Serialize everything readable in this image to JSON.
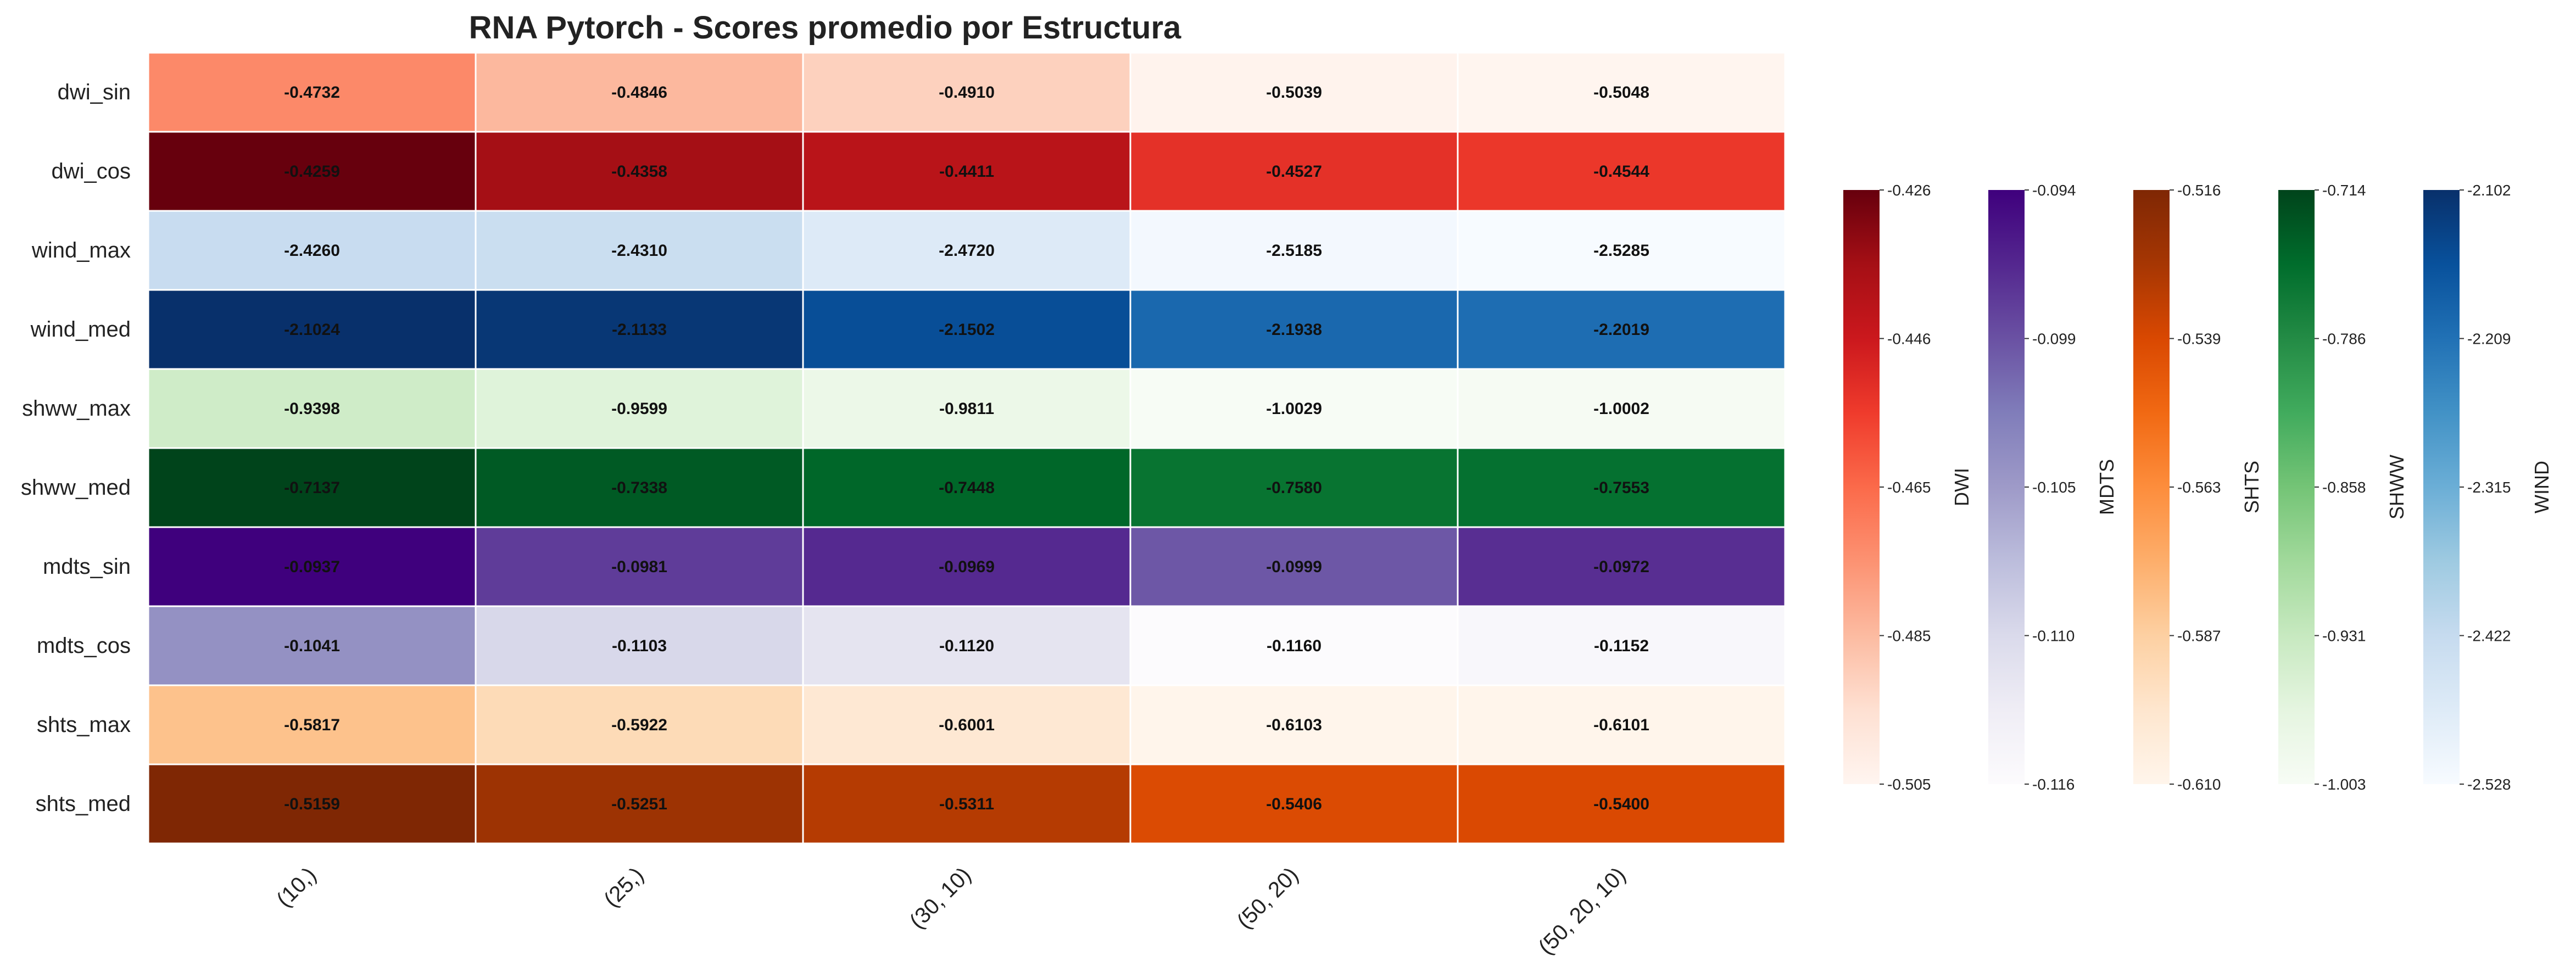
{
  "chart_data": {
    "type": "heatmap",
    "title": "RNA Pytorch - Scores promedio por Estructura",
    "columns": [
      "(10,)",
      "(25,)",
      "(30, 10)",
      "(50, 20)",
      "(50, 20, 10)"
    ],
    "rows": [
      {
        "label": "dwi_sin",
        "group": "DWI",
        "values": [
          -0.4732,
          -0.4846,
          -0.491,
          -0.5039,
          -0.5048
        ],
        "texts": [
          "-0.4732",
          "-0.4846",
          "-0.4910",
          "-0.5039",
          "-0.5048"
        ]
      },
      {
        "label": "dwi_cos",
        "group": "DWI",
        "values": [
          -0.4259,
          -0.4358,
          -0.4411,
          -0.4527,
          -0.4544
        ],
        "texts": [
          "-0.4259",
          "-0.4358",
          "-0.4411",
          "-0.4527",
          "-0.4544"
        ]
      },
      {
        "label": "wind_max",
        "group": "WIND",
        "values": [
          -2.426,
          -2.431,
          -2.472,
          -2.5185,
          -2.5285
        ],
        "texts": [
          "-2.4260",
          "-2.4310",
          "-2.4720",
          "-2.5185",
          "-2.5285"
        ]
      },
      {
        "label": "wind_med",
        "group": "WIND",
        "values": [
          -2.1024,
          -2.1133,
          -2.1502,
          -2.1938,
          -2.2019
        ],
        "texts": [
          "-2.1024",
          "-2.1133",
          "-2.1502",
          "-2.1938",
          "-2.2019"
        ]
      },
      {
        "label": "shww_max",
        "group": "SHWW",
        "values": [
          -0.9398,
          -0.9599,
          -0.9811,
          -1.0029,
          -1.0002
        ],
        "texts": [
          "-0.9398",
          "-0.9599",
          "-0.9811",
          "-1.0029",
          "-1.0002"
        ]
      },
      {
        "label": "shww_med",
        "group": "SHWW",
        "values": [
          -0.7137,
          -0.7338,
          -0.7448,
          -0.758,
          -0.7553
        ],
        "texts": [
          "-0.7137",
          "-0.7338",
          "-0.7448",
          "-0.7580",
          "-0.7553"
        ]
      },
      {
        "label": "mdts_sin",
        "group": "MDTS",
        "values": [
          -0.0937,
          -0.0981,
          -0.0969,
          -0.0999,
          -0.0972
        ],
        "texts": [
          "-0.0937",
          "-0.0981",
          "-0.0969",
          "-0.0999",
          "-0.0972"
        ]
      },
      {
        "label": "mdts_cos",
        "group": "MDTS",
        "values": [
          -0.1041,
          -0.1103,
          -0.112,
          -0.116,
          -0.1152
        ],
        "texts": [
          "-0.1041",
          "-0.1103",
          "-0.1120",
          "-0.1160",
          "-0.1152"
        ]
      },
      {
        "label": "shts_max",
        "group": "SHTS",
        "values": [
          -0.5817,
          -0.5922,
          -0.6001,
          -0.6103,
          -0.6101
        ],
        "texts": [
          "-0.5817",
          "-0.5922",
          "-0.6001",
          "-0.6103",
          "-0.6101"
        ]
      },
      {
        "label": "shts_med",
        "group": "SHTS",
        "values": [
          -0.5159,
          -0.5251,
          -0.5311,
          -0.5406,
          -0.54
        ],
        "texts": [
          "-0.5159",
          "-0.5251",
          "-0.5311",
          "-0.5406",
          "-0.5400"
        ]
      }
    ],
    "colorbars": [
      {
        "label": "DWI",
        "colormap": "Reds",
        "min": -0.505,
        "max": -0.426,
        "ticks": [
          "-0.426",
          "-0.446",
          "-0.465",
          "-0.485",
          "-0.505"
        ]
      },
      {
        "label": "MDTS",
        "colormap": "Purples",
        "min": -0.116,
        "max": -0.094,
        "ticks": [
          "-0.094",
          "-0.099",
          "-0.105",
          "-0.110",
          "-0.116"
        ]
      },
      {
        "label": "SHTS",
        "colormap": "Oranges",
        "min": -0.61,
        "max": -0.516,
        "ticks": [
          "-0.516",
          "-0.539",
          "-0.563",
          "-0.587",
          "-0.610"
        ]
      },
      {
        "label": "SHWW",
        "colormap": "Greens",
        "min": -1.003,
        "max": -0.714,
        "ticks": [
          "-0.714",
          "-0.786",
          "-0.858",
          "-0.931",
          "-1.003"
        ]
      },
      {
        "label": "WIND",
        "colormap": "Blues",
        "min": -2.528,
        "max": -2.102,
        "ticks": [
          "-2.102",
          "-2.209",
          "-2.315",
          "-2.422",
          "-2.528"
        ]
      }
    ],
    "colormaps": {
      "Reds": [
        "#fff5f0",
        "#fee0d2",
        "#fcbba1",
        "#fc9272",
        "#fb6a4a",
        "#ef3b2c",
        "#cb181d",
        "#a50f15",
        "#67000d"
      ],
      "Purples": [
        "#fcfbfd",
        "#efedf5",
        "#dadaeb",
        "#bcbddc",
        "#9e9ac8",
        "#807dba",
        "#6a51a3",
        "#54278f",
        "#3f007d"
      ],
      "Oranges": [
        "#fff5eb",
        "#fee6ce",
        "#fdd0a2",
        "#fdae6b",
        "#fd8d3c",
        "#f16913",
        "#d94801",
        "#a63603",
        "#7f2704"
      ],
      "Greens": [
        "#f7fcf5",
        "#e5f5e0",
        "#c7e9c0",
        "#a1d99b",
        "#74c476",
        "#41ab5d",
        "#238b45",
        "#006d2c",
        "#00441b"
      ],
      "Blues": [
        "#f7fbff",
        "#deebf7",
        "#c6dbef",
        "#9ecae1",
        "#6baed6",
        "#4292c6",
        "#2171b5",
        "#08519c",
        "#08306b"
      ]
    }
  }
}
